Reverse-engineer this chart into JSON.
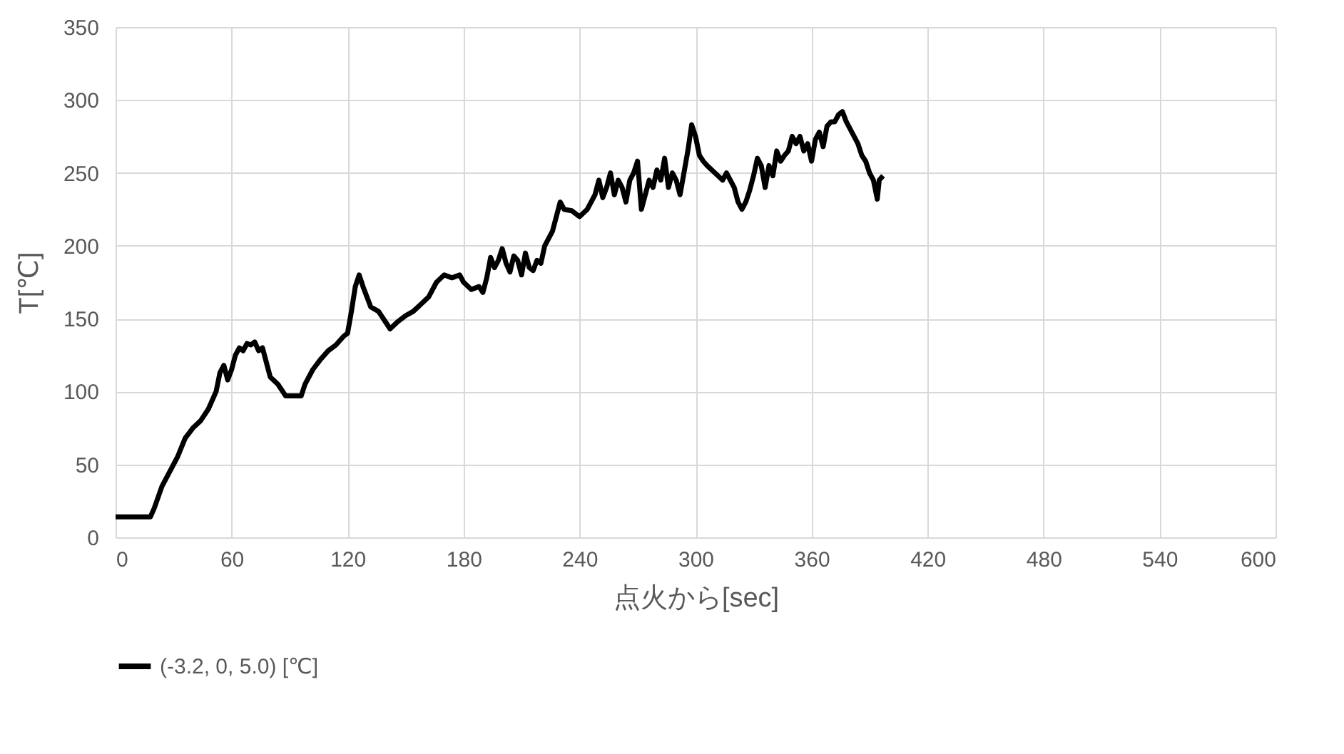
{
  "chart_data": {
    "type": "line",
    "xlabel": "点火から[sec]",
    "ylabel": "T[℃]",
    "xlim": [
      0,
      600
    ],
    "xticks": [
      0,
      60,
      120,
      180,
      240,
      300,
      360,
      420,
      480,
      540,
      600
    ],
    "ylim": [
      0,
      350
    ],
    "yticks": [
      0,
      50,
      100,
      150,
      200,
      250,
      300,
      350
    ],
    "grid": true,
    "legend": "bottom",
    "line_style": "solid",
    "marker": "none",
    "x": [
      0,
      5,
      12,
      18,
      20,
      24,
      28,
      32,
      36,
      40,
      44,
      48,
      52,
      54,
      56,
      58,
      60,
      62,
      64,
      66,
      68,
      70,
      72,
      74,
      76,
      78,
      80,
      84,
      88,
      92,
      96,
      98,
      102,
      106,
      110,
      114,
      118,
      120,
      122,
      124,
      126,
      128,
      130,
      132,
      136,
      140,
      142,
      146,
      150,
      154,
      158,
      162,
      166,
      170,
      174,
      178,
      180,
      184,
      188,
      190,
      192,
      194,
      196,
      198,
      200,
      202,
      204,
      206,
      208,
      210,
      212,
      214,
      216,
      218,
      220,
      222,
      224,
      226,
      228,
      230,
      232,
      236,
      240,
      244,
      248,
      250,
      252,
      254,
      256,
      258,
      260,
      262,
      264,
      266,
      268,
      270,
      272,
      274,
      276,
      278,
      280,
      282,
      284,
      286,
      288,
      290,
      292,
      294,
      296,
      298,
      300,
      302,
      304,
      306,
      310,
      314,
      316,
      318,
      320,
      322,
      324,
      326,
      328,
      330,
      332,
      334,
      336,
      338,
      340,
      342,
      344,
      346,
      348,
      350,
      352,
      354,
      356,
      358,
      360,
      362,
      364,
      366,
      368,
      370,
      372,
      374,
      376,
      378,
      380,
      384,
      386,
      388,
      390,
      392,
      394,
      395,
      397
    ],
    "series": [
      {
        "name": "(-3.2, 0, 5.0) [℃]",
        "color": "#000000",
        "values": [
          14,
          14,
          14,
          14,
          20,
          35,
          45,
          55,
          68,
          75,
          80,
          88,
          100,
          113,
          118,
          108,
          115,
          125,
          130,
          128,
          133,
          132,
          134,
          128,
          130,
          120,
          110,
          105,
          97,
          97,
          97,
          105,
          115,
          122,
          128,
          132,
          138,
          140,
          155,
          172,
          180,
          172,
          165,
          158,
          155,
          147,
          143,
          148,
          152,
          155,
          160,
          165,
          175,
          180,
          178,
          180,
          175,
          170,
          172,
          168,
          178,
          192,
          185,
          190,
          198,
          188,
          182,
          193,
          190,
          180,
          195,
          185,
          183,
          190,
          188,
          200,
          205,
          210,
          220,
          230,
          225,
          224,
          220,
          225,
          235,
          245,
          233,
          240,
          250,
          235,
          245,
          240,
          230,
          245,
          250,
          258,
          225,
          235,
          245,
          240,
          252,
          245,
          260,
          240,
          250,
          245,
          235,
          250,
          265,
          283,
          275,
          262,
          258,
          255,
          250,
          245,
          250,
          245,
          240,
          230,
          225,
          230,
          238,
          248,
          260,
          255,
          240,
          255,
          248,
          265,
          258,
          262,
          265,
          275,
          270,
          275,
          265,
          270,
          258,
          273,
          278,
          268,
          282,
          285,
          285,
          290,
          292,
          285,
          280,
          270,
          262,
          258,
          250,
          245,
          232,
          245,
          248
        ]
      }
    ]
  }
}
